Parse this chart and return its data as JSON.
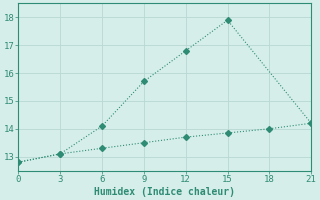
{
  "xlabel": "Humidex (Indice chaleur)",
  "line1_x": [
    0,
    3,
    6,
    9,
    12,
    15,
    21
  ],
  "line1_y": [
    12.8,
    13.1,
    14.1,
    15.7,
    16.8,
    17.9,
    14.2
  ],
  "line2_x": [
    0,
    3,
    6,
    9,
    12,
    15,
    18,
    21
  ],
  "line2_y": [
    12.8,
    13.1,
    13.3,
    13.5,
    13.7,
    13.85,
    14.0,
    14.2
  ],
  "line_color": "#2e8b74",
  "bg_color": "#d6eeea",
  "grid_color": "#b8d8d4",
  "xlim": [
    0,
    21
  ],
  "ylim": [
    12.5,
    18.5
  ],
  "xticks": [
    0,
    3,
    6,
    9,
    12,
    15,
    18,
    21
  ],
  "yticks": [
    13,
    14,
    15,
    16,
    17,
    18
  ],
  "markersize": 3,
  "linewidth": 0.8,
  "tick_fontsize": 6.5,
  "xlabel_fontsize": 7
}
